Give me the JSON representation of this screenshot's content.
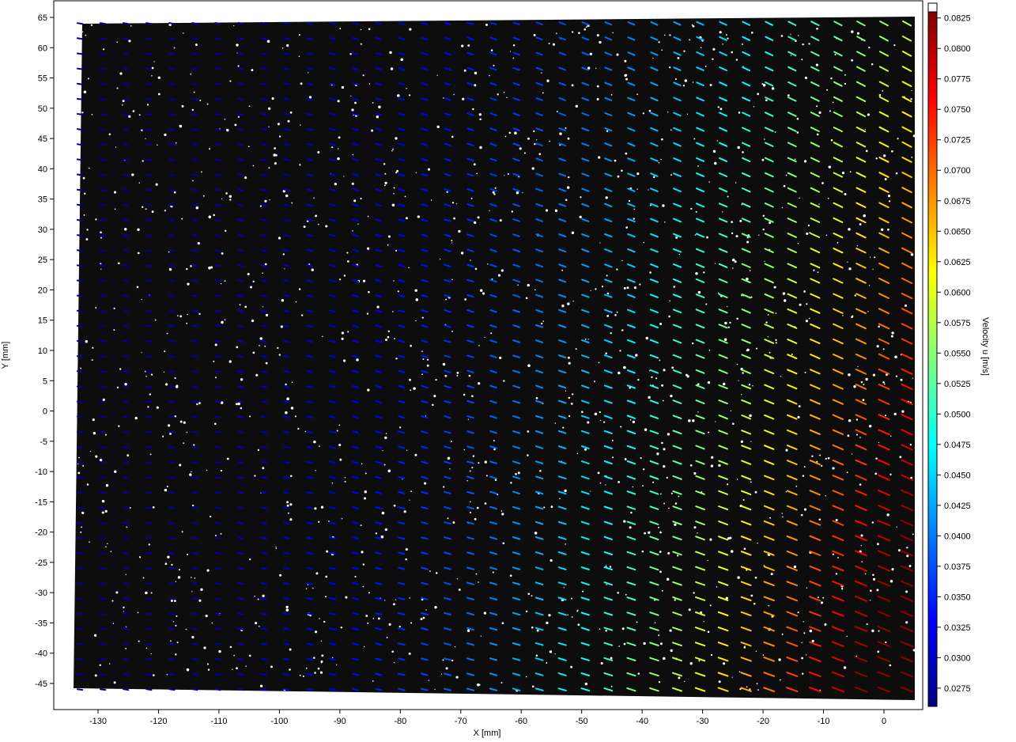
{
  "chart_data": {
    "type": "vector-field",
    "xlabel": "X [mm]",
    "ylabel": "Y [mm]",
    "xlim": [
      -137,
      6
    ],
    "ylim": [
      -48.5,
      66.5
    ],
    "x_ticks": [
      "-130",
      "-120",
      "-110",
      "-100",
      "-90",
      "-80",
      "-70",
      "-60",
      "-50",
      "-40",
      "-30",
      "-20",
      "-10",
      "0"
    ],
    "y_ticks": [
      "65",
      "60",
      "55",
      "50",
      "45",
      "40",
      "35",
      "30",
      "25",
      "20",
      "15",
      "10",
      "5",
      "0",
      "-5",
      "-10",
      "-15",
      "-20",
      "-25",
      "-30",
      "-35",
      "-40",
      "-45"
    ],
    "x_tick_values": [
      -130,
      -120,
      -110,
      -100,
      -90,
      -80,
      -70,
      -60,
      -50,
      -40,
      -30,
      -20,
      -10,
      0
    ],
    "y_tick_values": [
      65,
      60,
      55,
      50,
      45,
      40,
      35,
      30,
      25,
      20,
      15,
      10,
      5,
      0,
      -5,
      -10,
      -15,
      -20,
      -25,
      -30,
      -35,
      -40,
      -45
    ],
    "colorbar": {
      "label": "Velocity u [m/s]",
      "min": 0.026,
      "max": 0.083,
      "tick_values": [
        0.0825,
        0.08,
        0.0775,
        0.075,
        0.0725,
        0.07,
        0.0675,
        0.065,
        0.0625,
        0.06,
        0.0575,
        0.055,
        0.0525,
        0.05,
        0.0475,
        0.045,
        0.0425,
        0.04,
        0.0375,
        0.035,
        0.0325,
        0.03,
        0.0275
      ],
      "tick_labels": [
        "0.0825",
        "0.0800",
        "0.0775",
        "0.0750",
        "0.0725",
        "0.0700",
        "0.0675",
        "0.0650",
        "0.0625",
        "0.0600",
        "0.0575",
        "0.0550",
        "0.0525",
        "0.0500",
        "0.0475",
        "0.0450",
        "0.0425",
        "0.0400",
        "0.0375",
        "0.0350",
        "0.0325",
        "0.0300",
        "0.0275"
      ],
      "colormap": "jet"
    },
    "background": "dark particle image (PIV)",
    "grid": false,
    "vector_field": {
      "x_start": -133,
      "x_end": 4,
      "x_step": 3.8,
      "y_start": -46,
      "y_end": 64,
      "y_step": 2.5,
      "u_min": 0.028,
      "u_max": 0.082,
      "description_of_trend": "u increases toward right and bottom; vectors slope downward-right"
    },
    "colors": {
      "image_background": "#0d0d0d",
      "particle": "#ffffff"
    }
  }
}
